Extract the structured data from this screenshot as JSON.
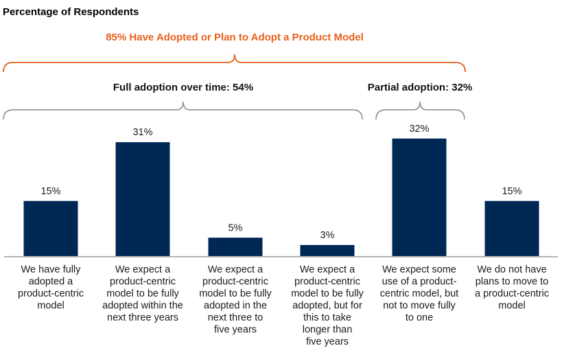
{
  "chart_data": {
    "type": "bar",
    "title": "Percentage of Respondents",
    "xlabel": "",
    "ylabel": "Percentage of Respondents",
    "ylim": [
      0,
      35
    ],
    "grid": false,
    "bar_color": "#002855",
    "categories": [
      [
        "We have fully",
        "adopted a",
        "product-centric",
        "model"
      ],
      [
        "We expect a",
        "product-centric",
        "model to be fully",
        "adopted within the",
        "next three years"
      ],
      [
        "We expect a",
        "product-centric",
        "model to be fully",
        "adopted in the",
        "next three to",
        "five years"
      ],
      [
        "We expect a",
        "product-centric",
        "model to be fully",
        "adopted, but for",
        "this to take",
        "longer than",
        "five years"
      ],
      [
        "We expect some",
        "use of a product-",
        "centric model, but",
        "not to move fully",
        "to one"
      ],
      [
        "We do not have",
        "plans to move to",
        "a product-centric",
        "model"
      ]
    ],
    "values": [
      15,
      31,
      5,
      3,
      32,
      15
    ],
    "value_labels": [
      "15%",
      "31%",
      "5%",
      "3%",
      "32%",
      "15%"
    ],
    "annotations": [
      {
        "text": "85% Have Adopted or Plan to Adopt a Product Model",
        "spans_categories": [
          0,
          4
        ],
        "color": "#E8601C"
      },
      {
        "text": "Full adoption over time: 54%",
        "spans_categories": [
          0,
          3
        ],
        "color": "#9A9A9A"
      },
      {
        "text": "Partial adoption: 32%",
        "spans_categories": [
          4,
          4
        ],
        "color": "#9A9A9A"
      }
    ]
  }
}
